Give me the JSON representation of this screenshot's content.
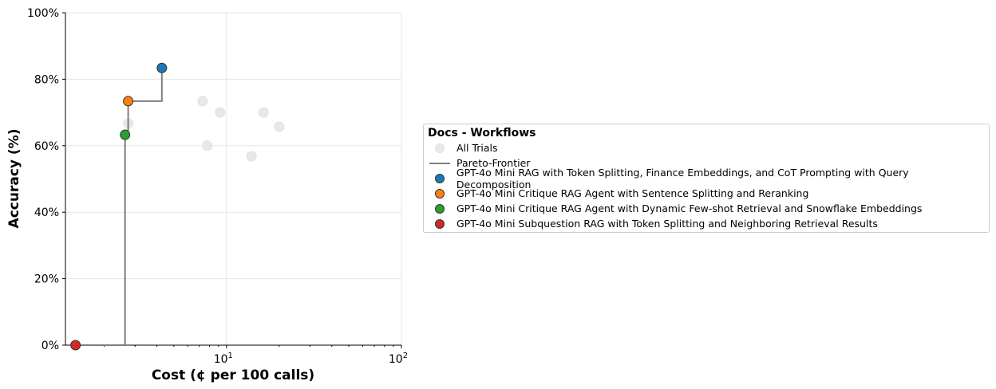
{
  "chart_data": {
    "type": "scatter",
    "xlabel": "Cost (¢ per 100 calls)",
    "ylabel": "Accuracy (%)",
    "xscale": "log",
    "xlim": [
      1.2,
      100
    ],
    "ylim": [
      0,
      100
    ],
    "xticks": [
      {
        "value": 10,
        "base": "10",
        "exp": "1"
      },
      {
        "value": 100,
        "base": "10",
        "exp": "2"
      }
    ],
    "yticks": [
      0,
      20,
      40,
      60,
      80,
      100
    ],
    "ytick_labels": [
      "0%",
      "20%",
      "40%",
      "60%",
      "80%",
      "100%"
    ],
    "grid": true,
    "legend": {
      "title": "Docs - Workflows",
      "placement": "right"
    },
    "all_trials": {
      "name": "All Trials",
      "color": "#e8e8e8",
      "points": [
        [
          2.74,
          66.7
        ],
        [
          7.3,
          73.4
        ],
        [
          7.77,
          60
        ],
        [
          9.2,
          70
        ],
        [
          13.9,
          56.8
        ],
        [
          16.3,
          70
        ],
        [
          20.0,
          65.7
        ]
      ]
    },
    "pareto": {
      "name": "Pareto-Frontier",
      "color": "#7f7f7f"
    },
    "series": [
      {
        "name": "GPT-4o Mini RAG with Token Splitting, Finance Embeddings, and CoT Prompting with Query Decomposition",
        "color": "#1f77b4",
        "x": 4.27,
        "y": 83.4
      },
      {
        "name": "GPT-4o Mini Critique RAG Agent with Sentence Splitting and Reranking",
        "color": "#ff7f0e",
        "x": 2.74,
        "y": 73.4
      },
      {
        "name": "GPT-4o Mini Critique RAG Agent with Dynamic Few-shot Retrieval and Snowflake Embeddings",
        "color": "#2ca02c",
        "x": 2.63,
        "y": 63.3
      },
      {
        "name": "GPT-4o Mini Subquestion RAG with Token Splitting and Neighboring Retrieval Results",
        "color": "#d62728",
        "x": 1.37,
        "y": 0
      }
    ]
  }
}
